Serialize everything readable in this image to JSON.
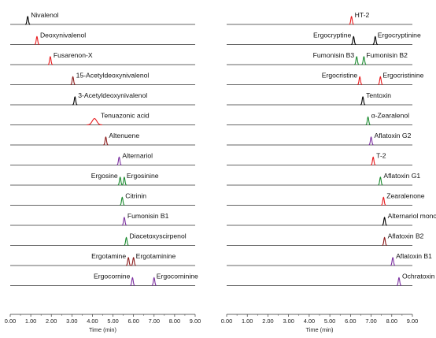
{
  "chart_data": [
    {
      "type": "line",
      "xlabel": "Time (min)",
      "xlim": [
        0,
        9
      ],
      "xticks": [
        "0.00",
        "1.00",
        "2.00",
        "3.00",
        "4.00",
        "5.00",
        "6.00",
        "7.00",
        "8.00",
        "9.00"
      ],
      "series": [
        {
          "name": "Nivalenol",
          "color": "#000000",
          "peaks": [
            0.85
          ]
        },
        {
          "name": "Deoxynivalenol",
          "color": "#e8191c",
          "peaks": [
            1.3
          ]
        },
        {
          "name": "Fusarenon-X",
          "color": "#e8191c",
          "peaks": [
            1.95
          ]
        },
        {
          "name": "15-Acetyldeoxynivalenol",
          "color": "#8b1a1a",
          "peaks": [
            3.05
          ]
        },
        {
          "name": "3-Acetyldeoxynivalenol",
          "color": "#000000",
          "peaks": [
            3.15
          ]
        },
        {
          "name": "Tenuazonic acid",
          "color": "#e8191c",
          "peaks": [
            4.1
          ]
        },
        {
          "name": "Altenuene",
          "color": "#8b1a1a",
          "peaks": [
            4.65
          ]
        },
        {
          "name": "Alternariol",
          "color": "#7b2fa0",
          "peaks": [
            5.3
          ]
        },
        {
          "name": "Ergosine | Ergosinine",
          "color": "#1a8a2e",
          "peaks": [
            5.35,
            5.55
          ]
        },
        {
          "name": "Citrinin",
          "color": "#1a8a2e",
          "peaks": [
            5.45
          ]
        },
        {
          "name": "Fumonisin B1",
          "color": "#7b2fa0",
          "peaks": [
            5.55
          ]
        },
        {
          "name": "Diacetoxyscirpenol",
          "color": "#1a8a2e",
          "peaks": [
            5.65
          ]
        },
        {
          "name": "Ergotamine | Ergotaminine",
          "color": "#8b1a1a",
          "peaks": [
            5.75,
            6.0
          ]
        },
        {
          "name": "Ergocornine | Ergocorninine",
          "color": "#7b2fa0",
          "peaks": [
            5.95,
            7.0
          ]
        }
      ]
    },
    {
      "type": "line",
      "xlabel": "Time (min)",
      "xlim": [
        0,
        9
      ],
      "xticks": [
        "0.00",
        "1.00",
        "2.00",
        "3.00",
        "4.00",
        "5.00",
        "6.00",
        "7.00",
        "8.00",
        "9.00"
      ],
      "series": [
        {
          "name": "HT-2",
          "color": "#e8191c",
          "peaks": [
            6.05
          ]
        },
        {
          "name": "Ergocryptine | Ergocryptinine",
          "color": "#000000",
          "peaks": [
            6.15,
            7.2
          ]
        },
        {
          "name": "Fumonisin B3 | Fumonisin B2",
          "color": "#1a8a2e",
          "peaks": [
            6.3,
            6.65
          ]
        },
        {
          "name": "Ergocristine | Ergocristinine",
          "color": "#e8191c",
          "peaks": [
            6.45,
            7.45
          ]
        },
        {
          "name": "Tentoxin",
          "color": "#000000",
          "peaks": [
            6.6
          ]
        },
        {
          "name": "α-Zearalenol",
          "color": "#1a8a2e",
          "peaks": [
            6.85
          ]
        },
        {
          "name": "Aflatoxin G2",
          "color": "#7b2fa0",
          "peaks": [
            7.0
          ]
        },
        {
          "name": "T-2",
          "color": "#e8191c",
          "peaks": [
            7.1
          ]
        },
        {
          "name": "Aflatoxin G1",
          "color": "#1a8a2e",
          "peaks": [
            7.45
          ]
        },
        {
          "name": "Zearalenone",
          "color": "#e8191c",
          "peaks": [
            7.6
          ]
        },
        {
          "name": "Alternariol monomethylether",
          "color": "#000000",
          "peaks": [
            7.65
          ]
        },
        {
          "name": "Aflatoxin B2",
          "color": "#8b1a1a",
          "peaks": [
            7.65
          ]
        },
        {
          "name": "Aflatoxin B1",
          "color": "#7b2fa0",
          "peaks": [
            8.05
          ]
        },
        {
          "name": "Ochratoxin A",
          "color": "#7b2fa0",
          "peaks": [
            8.35
          ]
        }
      ]
    }
  ]
}
